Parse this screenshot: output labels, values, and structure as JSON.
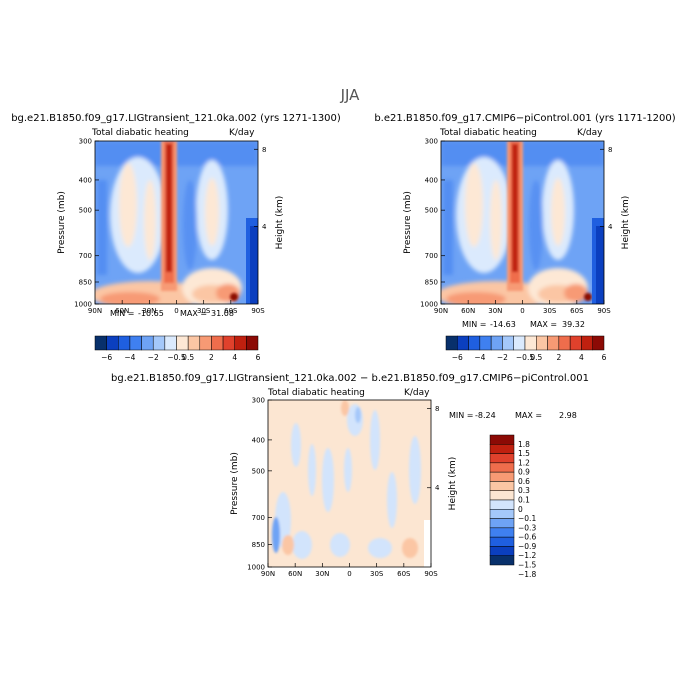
{
  "super_title": "JJA",
  "palettes": {
    "full": [
      "#08306b",
      "#0b3fbf",
      "#1f5fe0",
      "#3f80f0",
      "#6ea3f5",
      "#a4c8fa",
      "#dbeafd",
      "#fde8d5",
      "#fbc6a4",
      "#f79a74",
      "#ef6d4c",
      "#e0412c",
      "#c0200f",
      "#8c0a05"
    ],
    "diff": [
      "#08306b",
      "#0b3fbf",
      "#1f5fe0",
      "#3f80f0",
      "#6ea3f5",
      "#a4c8fa",
      "#d2e4fc",
      "#fce6d2",
      "#fbc6a4",
      "#f79a74",
      "#ef6d4c",
      "#e0412c",
      "#c0200f",
      "#8c0a05"
    ]
  },
  "chart_data": [
    {
      "type": "heatmap",
      "title": "bg.e21.B1850.f09_g17.LIGtransient_121.0ka.002 (yrs 1271-1300)",
      "subtitle_left": "Total diabatic heating",
      "subtitle_right": "K/day",
      "ylabel": "Pressure (mb)",
      "ylabel_right": "Height (km)",
      "y_ticks": [
        "300",
        "400",
        "500",
        "700",
        "850",
        "1000"
      ],
      "y_tick_values": [
        300,
        400,
        500,
        700,
        850,
        1000
      ],
      "right_ticks": [
        "8",
        "4"
      ],
      "right_tick_values": [
        8,
        4
      ],
      "x_ticks": [
        "90N",
        "60N",
        "30N",
        "0",
        "30S",
        "60S",
        "90S"
      ],
      "x_tick_values": [
        90,
        60,
        30,
        0,
        -30,
        -60,
        -90
      ],
      "min_label": "MIN =",
      "min_value": "-10.65",
      "max_label": "MAX =",
      "max_value": "31.08",
      "colorbar_labels": [
        "−6",
        "−4",
        "−2",
        "−0.5",
        "0.5",
        "2",
        "4",
        "6"
      ],
      "colorbar_levels": [
        -6,
        -5,
        -4,
        -3,
        -2,
        -1,
        -0.5,
        0.5,
        1,
        2,
        3,
        4,
        5,
        6
      ]
    },
    {
      "type": "heatmap",
      "title": "b.e21.B1850.f09_g17.CMIP6−piControl.001 (yrs 1171-1200)",
      "subtitle_left": "Total diabatic heating",
      "subtitle_right": "K/day",
      "ylabel": "Pressure (mb)",
      "ylabel_right": "Height (km)",
      "y_ticks": [
        "300",
        "400",
        "500",
        "700",
        "850",
        "1000"
      ],
      "y_tick_values": [
        300,
        400,
        500,
        700,
        850,
        1000
      ],
      "right_ticks": [
        "8",
        "4"
      ],
      "right_tick_values": [
        8,
        4
      ],
      "x_ticks": [
        "90N",
        "60N",
        "30N",
        "0",
        "30S",
        "60S",
        "90S"
      ],
      "x_tick_values": [
        90,
        60,
        30,
        0,
        -30,
        -60,
        -90
      ],
      "min_label": "MIN =",
      "min_value": "-14.63",
      "max_label": "MAX =",
      "max_value": "39.32",
      "colorbar_labels": [
        "−6",
        "−4",
        "−2",
        "−0.5",
        "0.5",
        "2",
        "4",
        "6"
      ],
      "colorbar_levels": [
        -6,
        -5,
        -4,
        -3,
        -2,
        -1,
        -0.5,
        0.5,
        1,
        2,
        3,
        4,
        5,
        6
      ]
    },
    {
      "type": "heatmap",
      "title": "bg.e21.B1850.f09_g17.LIGtransient_121.0ka.002 − b.e21.B1850.f09_g17.CMIP6−piControl.001",
      "subtitle_left": "Total diabatic heating",
      "subtitle_right": "K/day",
      "ylabel": "Pressure (mb)",
      "ylabel_right": "Height (km)",
      "y_ticks": [
        "300",
        "400",
        "500",
        "700",
        "850",
        "1000"
      ],
      "y_tick_values": [
        300,
        400,
        500,
        700,
        850,
        1000
      ],
      "right_ticks": [
        "8",
        "4"
      ],
      "right_tick_values": [
        8,
        4
      ],
      "x_ticks": [
        "90N",
        "60N",
        "30N",
        "0",
        "30S",
        "60S",
        "90S"
      ],
      "x_tick_values": [
        90,
        60,
        30,
        0,
        -30,
        -60,
        -90
      ],
      "min_label": "MIN =",
      "min_value": "-8.24",
      "max_label": "MAX =",
      "max_value": "2.98",
      "colorbar_labels": [
        "1.8",
        "1.5",
        "1.2",
        "0.9",
        "0.6",
        "0.3",
        "0.1",
        "0",
        "−0.1",
        "−0.3",
        "−0.6",
        "−0.9",
        "−1.2",
        "−1.5",
        "−1.8"
      ],
      "colorbar_levels": [
        1.8,
        1.5,
        1.2,
        0.9,
        0.6,
        0.3,
        0.1,
        0,
        -0.1,
        -0.3,
        -0.6,
        -0.9,
        -1.2,
        -1.5,
        -1.8
      ]
    }
  ]
}
